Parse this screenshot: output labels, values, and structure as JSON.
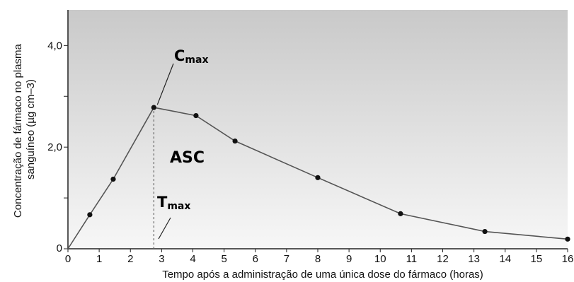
{
  "chart_data": {
    "type": "line",
    "title": "",
    "xlabel": "Tempo após a administração de uma única dose do fármaco (horas)",
    "ylabel_lines": [
      "Concentração de fármaco no plasma",
      "sanguíneo (µg cm–3)"
    ],
    "xlim": [
      0,
      16
    ],
    "ylim": [
      0,
      4.7
    ],
    "x_ticks": [
      {
        "value": 0,
        "label": "0"
      },
      {
        "value": 1,
        "label": "1"
      },
      {
        "value": 2,
        "label": "2"
      },
      {
        "value": 3,
        "label": "3"
      },
      {
        "value": 4,
        "label": "4"
      },
      {
        "value": 5,
        "label": "5"
      },
      {
        "value": 6,
        "label": "6"
      },
      {
        "value": 7,
        "label": "7"
      },
      {
        "value": 8,
        "label": "8"
      },
      {
        "value": 9,
        "label": "9"
      },
      {
        "value": 10,
        "label": "10"
      },
      {
        "value": 11,
        "label": "11"
      },
      {
        "value": 12,
        "label": "12"
      },
      {
        "value": 13,
        "label": "13"
      },
      {
        "value": 14,
        "label": "14"
      },
      {
        "value": 15,
        "label": "15"
      },
      {
        "value": 16,
        "label": "16"
      }
    ],
    "y_ticks": [
      {
        "value": 0,
        "label": "0"
      },
      {
        "value": 2.0,
        "label": "2,0"
      },
      {
        "value": 4.0,
        "label": "4,0"
      }
    ],
    "y_minor_ticks": [
      1.0,
      3.0
    ],
    "series": [
      {
        "points": [
          {
            "x": 0,
            "y": 0
          },
          {
            "x": 0.7,
            "y": 0.67
          },
          {
            "x": 1.45,
            "y": 1.37
          },
          {
            "x": 2.75,
            "y": 2.78
          },
          {
            "x": 4.1,
            "y": 2.62
          },
          {
            "x": 5.35,
            "y": 2.12
          },
          {
            "x": 8.0,
            "y": 1.4
          },
          {
            "x": 10.65,
            "y": 0.69
          },
          {
            "x": 13.35,
            "y": 0.34
          },
          {
            "x": 16.0,
            "y": 0.19
          }
        ]
      }
    ],
    "annotations": {
      "cmax": {
        "main": "C",
        "sub": "max",
        "x": 2.75,
        "y": 2.78
      },
      "tmax": {
        "main": "T",
        "sub": "max",
        "x": 2.75
      },
      "area": {
        "text": "ASC"
      }
    },
    "grid": false,
    "legend": "none",
    "colors": {
      "line": "#555555",
      "marker": "#111111",
      "axis": "#222222",
      "bg_top": "#c9c9c9",
      "bg_bottom": "#f7f7f7"
    }
  }
}
